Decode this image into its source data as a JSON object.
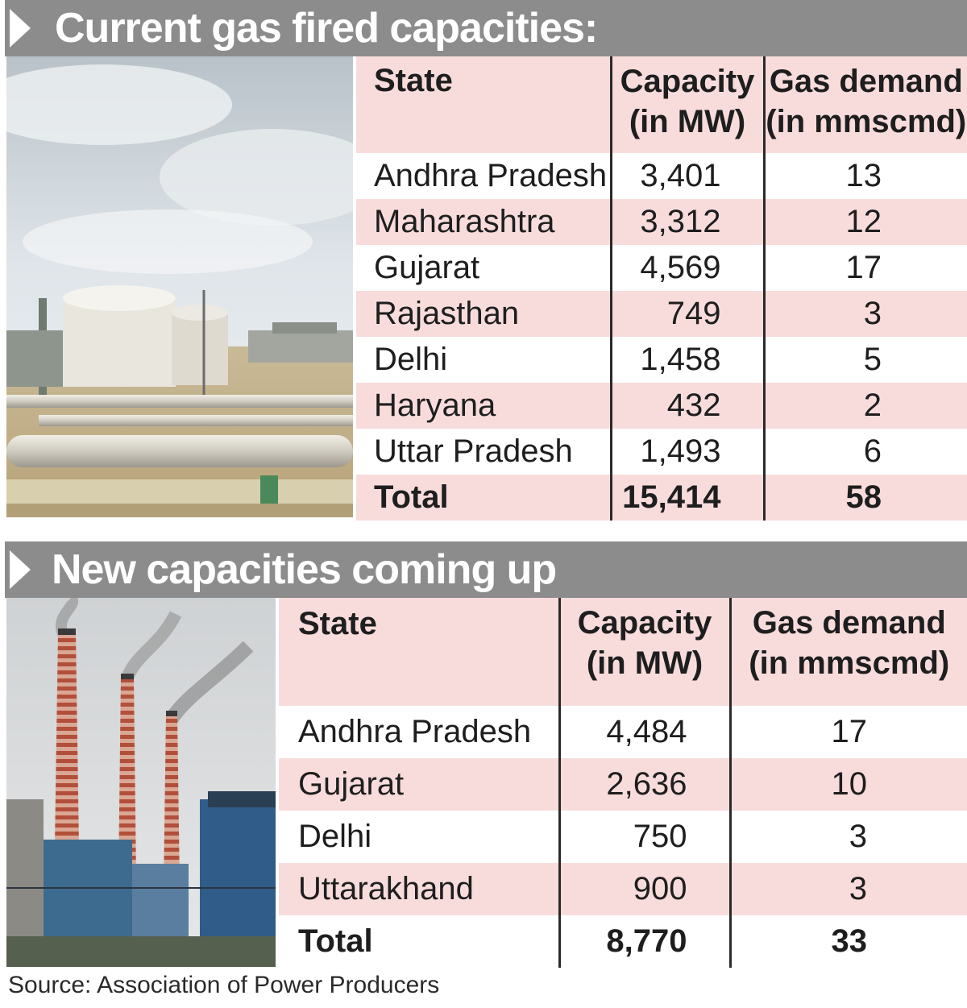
{
  "section1": {
    "title": "Current gas fired capacities:",
    "photo_alt": "gas plant storage tanks and pipelines",
    "headers": {
      "state": "State",
      "capacity_line1": "Capacity",
      "capacity_line2": "(in MW)",
      "demand_line1": "Gas demand",
      "demand_line2": "(in mmscmd)"
    },
    "rows": [
      {
        "state": "Andhra Pradesh",
        "capacity": "3,401",
        "demand": "13"
      },
      {
        "state": "Maharashtra",
        "capacity": "3,312",
        "demand": "12"
      },
      {
        "state": "Gujarat",
        "capacity": "4,569",
        "demand": "17"
      },
      {
        "state": "Rajasthan",
        "capacity": "749",
        "demand": "3"
      },
      {
        "state": "Delhi",
        "capacity": "1,458",
        "demand": "5"
      },
      {
        "state": "Haryana",
        "capacity": "432",
        "demand": "2"
      },
      {
        "state": "Uttar Pradesh",
        "capacity": "1,493",
        "demand": "6"
      },
      {
        "state": "Total",
        "capacity": "15,414",
        "demand": "58"
      }
    ]
  },
  "section2": {
    "title": "New capacities coming up",
    "photo_alt": "power station with three chimneys",
    "headers": {
      "state": "State",
      "capacity_line1": "Capacity",
      "capacity_line2": "(in MW)",
      "demand_line1": "Gas demand",
      "demand_line2": "(in mmscmd)"
    },
    "rows": [
      {
        "state": "Andhra Pradesh",
        "capacity": "4,484",
        "demand": "17"
      },
      {
        "state": "Gujarat",
        "capacity": "2,636",
        "demand": "10"
      },
      {
        "state": "Delhi",
        "capacity": "750",
        "demand": "3"
      },
      {
        "state": "Uttarakhand",
        "capacity": "900",
        "demand": "3"
      },
      {
        "state": "Total",
        "capacity": "8,770",
        "demand": "33"
      }
    ]
  },
  "source": "Source: Association of Power Producers",
  "colors": {
    "banner": "#8c8c8c",
    "row_pink": "#f8dcdc",
    "row_white": "#ffffff",
    "divider": "#2a2a2a"
  }
}
